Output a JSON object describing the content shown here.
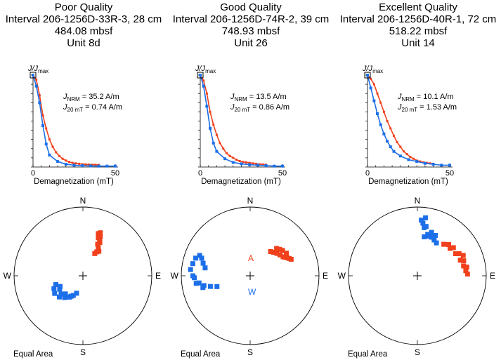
{
  "colors": {
    "afc": "#f0401c",
    "thermal": "#1c6fe8",
    "axis": "#000000"
  },
  "common": {
    "y_label_main": "J/J",
    "y_label_sub": "max",
    "x_label": "Demagnetization (mT)",
    "x_ticks": [
      "0",
      "50"
    ],
    "nrm_label_main": "J",
    "nrm_label_sub": "NRM",
    "j20_label_main": "J",
    "j20_label_sub": "20 mT",
    "compass": {
      "n": "N",
      "s": "S",
      "e": "E",
      "w": "W"
    },
    "equal_area": "Equal Area"
  },
  "panels": [
    {
      "title": "Poor Quality",
      "interval": "Interval 206-1256D-33R-3, 28 cm",
      "depth": "484.08 mbsf",
      "unit": "Unit 8d",
      "nrm_value": "= 35.2 A/m",
      "j20_value": "= 0.74 A/m",
      "stereonet_labels": {
        "red": "",
        "blue": ""
      }
    },
    {
      "title": "Good Quality",
      "interval": "Interval 206-1256D-74R-2, 39 cm",
      "depth": "748.93 mbsf",
      "unit": "Unit 26",
      "nrm_value": "= 13.5 A/m",
      "j20_value": "= 0.86 A/m",
      "stereonet_labels": {
        "red": "A",
        "blue": "W"
      }
    },
    {
      "title": "Excellent Quality",
      "interval": "Interval 206-1256D-40R-1, 72 cm",
      "depth": "518.22 mbsf",
      "unit": "Unit 14",
      "nrm_value": "= 10.1 A/m",
      "j20_value": "= 1.53 A/m",
      "stereonet_labels": {
        "red": "",
        "blue": ""
      }
    }
  ],
  "chart_data": [
    {
      "type": "line",
      "title": "Poor Quality",
      "xlabel": "Demagnetization (mT)",
      "ylabel": "J/Jmax",
      "xlim": [
        0,
        50
      ],
      "ylim": [
        0,
        1
      ],
      "series": [
        {
          "color": "#f0401c",
          "x": [
            0,
            2,
            4,
            6,
            8,
            10,
            12,
            14,
            16,
            18,
            20,
            22,
            24,
            26,
            28,
            30,
            32,
            34,
            36,
            38,
            40
          ],
          "y": [
            1.0,
            0.95,
            0.78,
            0.56,
            0.42,
            0.3,
            0.22,
            0.16,
            0.12,
            0.09,
            0.07,
            0.055,
            0.045,
            0.04,
            0.035,
            0.03,
            0.028,
            0.026,
            0.025,
            0.024,
            0.023
          ]
        },
        {
          "color": "#1c6fe8",
          "x": [
            0,
            2,
            4,
            6,
            8,
            10,
            15,
            20,
            25,
            30,
            35,
            40,
            45,
            50
          ],
          "y": [
            1.0,
            0.88,
            0.7,
            0.45,
            0.25,
            0.13,
            0.06,
            0.03,
            0.02,
            0.015,
            0.012,
            0.01,
            0.01,
            0.01
          ]
        }
      ],
      "stereonet": {
        "red": {
          "decl": [
            28,
            30,
            33,
            25,
            27,
            22,
            24,
            20,
            22,
            26,
            29
          ],
          "incl": [
            60,
            57,
            55,
            48,
            45,
            40,
            38,
            35,
            33,
            44,
            52
          ]
        },
        "blue": {
          "decl": [
            200,
            206,
            212,
            220,
            228,
            238,
            246,
            252,
            230,
            218,
            240,
            224,
            210,
            245
          ],
          "incl": [
            68,
            64,
            60,
            56,
            52,
            50,
            52,
            56,
            56,
            58,
            58,
            60,
            62,
            60
          ]
        }
      }
    },
    {
      "type": "line",
      "title": "Good Quality",
      "xlabel": "Demagnetization (mT)",
      "ylabel": "J/Jmax",
      "xlim": [
        0,
        50
      ],
      "ylim": [
        0,
        1
      ],
      "series": [
        {
          "color": "#f0401c",
          "x": [
            0,
            2,
            4,
            6,
            8,
            10,
            12,
            14,
            16,
            18,
            20,
            22,
            24,
            26,
            28,
            30,
            32,
            34,
            36,
            38,
            40
          ],
          "y": [
            1.0,
            0.94,
            0.8,
            0.6,
            0.46,
            0.35,
            0.26,
            0.2,
            0.15,
            0.12,
            0.1,
            0.08,
            0.065,
            0.055,
            0.05,
            0.045,
            0.04,
            0.035,
            0.03,
            0.028,
            0.025
          ]
        },
        {
          "color": "#1c6fe8",
          "x": [
            0,
            2,
            4,
            6,
            8,
            10,
            15,
            20,
            25,
            30,
            35,
            40,
            45,
            50
          ],
          "y": [
            1.0,
            0.88,
            0.66,
            0.42,
            0.26,
            0.17,
            0.09,
            0.05,
            0.035,
            0.025,
            0.02,
            0.015,
            0.01,
            0.01
          ]
        }
      ],
      "stereonet": {
        "red": {
          "decl": [
            40,
            45,
            50,
            55,
            60,
            62,
            64,
            66,
            58,
            52,
            48,
            44,
            68
          ],
          "incl": [
            52,
            50,
            48,
            46,
            44,
            42,
            40,
            38,
            38,
            40,
            42,
            44,
            36
          ]
        },
        "blue": {
          "decl": [
            280,
            285,
            290,
            292,
            288,
            282,
            276,
            270,
            262,
            258,
            255,
            252,
            256,
            262,
            268
          ],
          "incl": [
            34,
            30,
            26,
            22,
            18,
            16,
            14,
            18,
            26,
            32,
            40,
            48,
            30,
            22,
            20
          ]
        }
      }
    },
    {
      "type": "line",
      "title": "Excellent Quality",
      "xlabel": "Demagnetization (mT)",
      "ylabel": "J/Jmax",
      "xlim": [
        0,
        50
      ],
      "ylim": [
        0,
        1
      ],
      "series": [
        {
          "color": "#f0401c",
          "x": [
            0,
            2,
            4,
            6,
            8,
            10,
            12,
            14,
            16,
            18,
            20,
            22,
            24,
            26,
            28,
            30,
            32,
            34,
            36,
            38,
            40
          ],
          "y": [
            1.0,
            0.96,
            0.9,
            0.8,
            0.7,
            0.6,
            0.5,
            0.42,
            0.34,
            0.27,
            0.22,
            0.17,
            0.14,
            0.11,
            0.09,
            0.07,
            0.06,
            0.05,
            0.045,
            0.04,
            0.035
          ]
        },
        {
          "color": "#1c6fe8",
          "x": [
            0,
            2,
            4,
            6,
            8,
            10,
            12,
            14,
            16,
            20,
            25,
            30,
            35,
            40,
            45,
            50
          ],
          "y": [
            1.0,
            0.86,
            0.72,
            0.58,
            0.46,
            0.36,
            0.28,
            0.22,
            0.17,
            0.12,
            0.08,
            0.06,
            0.04,
            0.03,
            0.02,
            0.02
          ]
        }
      ],
      "stereonet": {
        "red": {
          "decl": [
            40,
            50,
            60,
            70,
            78,
            84,
            88,
            72,
            62,
            52,
            45,
            80,
            66
          ],
          "incl": [
            40,
            38,
            36,
            34,
            32,
            30,
            28,
            30,
            32,
            34,
            36,
            28,
            28
          ]
        },
        "blue": {
          "decl": [
            10,
            15,
            20,
            25,
            30,
            14,
            8,
            6,
            4,
            10,
            18,
            24,
            8
          ],
          "incl": [
            42,
            40,
            40,
            42,
            44,
            38,
            30,
            24,
            20,
            28,
            34,
            36,
            16
          ]
        }
      }
    }
  ]
}
